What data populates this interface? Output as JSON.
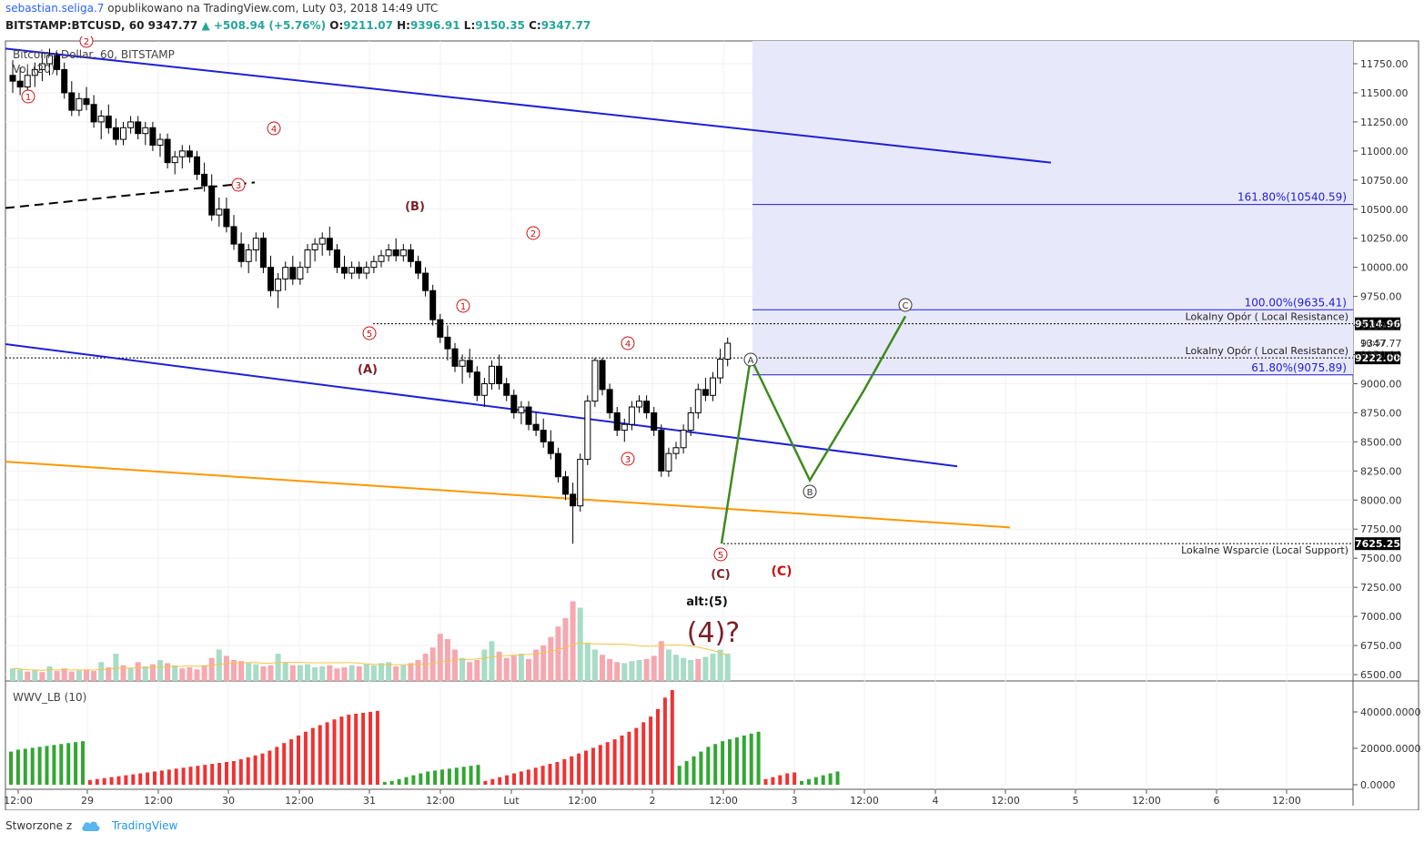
{
  "header": {
    "user": "sebastian.seliga.7",
    "published": "opublikowano na TradingView.com, Luty 03, 2018 14:49 UTC"
  },
  "symbol_bar": {
    "symbol": "BITSTAMP:BTCUSD, 60",
    "last": "9347.77",
    "change": "▲ +508.94 (+5.76%)",
    "o_label": "O:",
    "o": "9211.07",
    "h_label": "H:",
    "h": "9396.91",
    "l_label": "L:",
    "l": "9150.35",
    "c_label": "C:",
    "c": "9347.77"
  },
  "chart_legend": {
    "title": "Bitcoin / Dollar, 60, BITSTAMP",
    "volume_label": "Vol (20)",
    "indicator_label": "WWV_LB (10)"
  },
  "footer": {
    "created_with": "Stworzone z",
    "brand": "TradingView"
  },
  "colors": {
    "channel": "#1f1fd6",
    "orange": "#ff9800",
    "wave_path": "#3d8a1c",
    "bull": "#ffffff",
    "bear": "#000000",
    "projection_box": "#e8e8fb",
    "red_label": "#cc1111",
    "vol_up": "#a8dcc6",
    "vol_down": "#f5a8b0",
    "hist_up": "#33a633",
    "hist_down": "#ee3333"
  },
  "chart_data": {
    "type": "candlestick",
    "ylim": [
      6400,
      11950
    ],
    "y_ticks": [
      "6500.00",
      "6750.00",
      "7000.00",
      "7250.00",
      "7500.00",
      "7750.00",
      "8000.00",
      "8250.00",
      "8500.00",
      "8750.00",
      "9000.00",
      "9250.00",
      "9500.00",
      "9750.00",
      "10000.00",
      "10250.00",
      "10500.00",
      "10750.00",
      "11000.00",
      "11250.00",
      "11500.00",
      "11750.00"
    ],
    "x_ticks": [
      "12:00",
      "29",
      "12:00",
      "30",
      "12:00",
      "31",
      "12:00",
      "Lut",
      "12:00",
      "2",
      "12:00",
      "3",
      "12:00",
      "4",
      "12:00",
      "5",
      "12:00",
      "6",
      "12:00"
    ],
    "price_levels": [
      {
        "label": "Lokalny Opór ( Local Resistance)",
        "badge": "9514.96",
        "value": 9514.96
      },
      {
        "label": "Lokalny Opór ( Local Resistance)",
        "badge": "9222.00",
        "value": 9222.0
      },
      {
        "label": "Lokalne Wsparcie (Local Support)",
        "badge": "7625.25",
        "value": 7625.25
      }
    ],
    "fib_levels": [
      {
        "label": "161.80%(10540.59)",
        "value": 10540.59
      },
      {
        "label": "100.00%(9635.41)",
        "value": 9635.41
      },
      {
        "label": "61.80%(9075.89)",
        "value": 9075.89
      }
    ],
    "last_price_label": "9347.77",
    "countdown_label": "10:57",
    "wave_labels": {
      "a_caps": "(A)",
      "b_caps": "(B)",
      "c_caps": "(C)",
      "c_caps_2": "(C)",
      "alt": "alt:(5)",
      "big4": "(4)?",
      "A": "A",
      "B": "B",
      "C": "C",
      "n1": "1",
      "n2": "2",
      "n3": "3",
      "n4": "4",
      "n5": "5"
    },
    "candles": [
      [
        11650,
        11780,
        11500,
        11600
      ],
      [
        11600,
        11720,
        11480,
        11550
      ],
      [
        11550,
        11700,
        11450,
        11650
      ],
      [
        11650,
        11760,
        11550,
        11700
      ],
      [
        11700,
        11850,
        11600,
        11750
      ],
      [
        11750,
        11880,
        11650,
        11820
      ],
      [
        11820,
        11850,
        11650,
        11700
      ],
      [
        11700,
        11760,
        11450,
        11500
      ],
      [
        11500,
        11600,
        11300,
        11350
      ],
      [
        11350,
        11500,
        11300,
        11450
      ],
      [
        11450,
        11550,
        11350,
        11400
      ],
      [
        11400,
        11480,
        11200,
        11250
      ],
      [
        11250,
        11350,
        11100,
        11300
      ],
      [
        11300,
        11400,
        11150,
        11200
      ],
      [
        11200,
        11280,
        11050,
        11100
      ],
      [
        11100,
        11250,
        11050,
        11200
      ],
      [
        11200,
        11300,
        11150,
        11250
      ],
      [
        11250,
        11300,
        11100,
        11150
      ],
      [
        11150,
        11250,
        11050,
        11200
      ],
      [
        11200,
        11250,
        11000,
        11050
      ],
      [
        11050,
        11150,
        10950,
        11100
      ],
      [
        11100,
        11150,
        10850,
        10900
      ],
      [
        10900,
        11000,
        10800,
        10950
      ],
      [
        10950,
        11050,
        10850,
        11000
      ],
      [
        11000,
        11050,
        10900,
        10950
      ],
      [
        10950,
        11000,
        10750,
        10800
      ],
      [
        10800,
        10900,
        10650,
        10700
      ],
      [
        10700,
        10800,
        10400,
        10450
      ],
      [
        10450,
        10600,
        10350,
        10500
      ],
      [
        10500,
        10600,
        10300,
        10350
      ],
      [
        10350,
        10450,
        10150,
        10200
      ],
      [
        10200,
        10300,
        10000,
        10050
      ],
      [
        10050,
        10200,
        9950,
        10150
      ],
      [
        10150,
        10300,
        10050,
        10250
      ],
      [
        10250,
        10300,
        9950,
        10000
      ],
      [
        10000,
        10100,
        9750,
        9800
      ],
      [
        9800,
        9950,
        9650,
        9900
      ],
      [
        9900,
        10050,
        9800,
        10000
      ],
      [
        10000,
        10100,
        9850,
        9900
      ],
      [
        9900,
        10050,
        9850,
        10000
      ],
      [
        10000,
        10200,
        9950,
        10150
      ],
      [
        10150,
        10250,
        10050,
        10200
      ],
      [
        10200,
        10300,
        10100,
        10250
      ],
      [
        10250,
        10350,
        10100,
        10150
      ],
      [
        10150,
        10200,
        9950,
        10000
      ],
      [
        10000,
        10100,
        9900,
        9950
      ],
      [
        9950,
        10050,
        9900,
        10000
      ],
      [
        10000,
        10050,
        9900,
        9950
      ],
      [
        9950,
        10050,
        9900,
        10000
      ],
      [
        10000,
        10100,
        9950,
        10050
      ],
      [
        10050,
        10150,
        10000,
        10100
      ],
      [
        10100,
        10200,
        10050,
        10150
      ],
      [
        10150,
        10250,
        10050,
        10100
      ],
      [
        10100,
        10200,
        10050,
        10150
      ],
      [
        10150,
        10200,
        10000,
        10050
      ],
      [
        10050,
        10100,
        9900,
        9950
      ],
      [
        9950,
        10000,
        9750,
        9800
      ],
      [
        9800,
        9850,
        9500,
        9550
      ],
      [
        9550,
        9600,
        9350,
        9400
      ],
      [
        9400,
        9500,
        9200,
        9300
      ],
      [
        9300,
        9350,
        9100,
        9150
      ],
      [
        9150,
        9250,
        9000,
        9200
      ],
      [
        9200,
        9300,
        9050,
        9100
      ],
      [
        9100,
        9150,
        8850,
        8900
      ],
      [
        8900,
        9050,
        8800,
        9000
      ],
      [
        9000,
        9200,
        8950,
        9150
      ],
      [
        9150,
        9250,
        8950,
        9000
      ],
      [
        9000,
        9050,
        8850,
        8900
      ],
      [
        8900,
        8950,
        8700,
        8750
      ],
      [
        8750,
        8850,
        8650,
        8800
      ],
      [
        8800,
        8850,
        8600,
        8650
      ],
      [
        8650,
        8750,
        8550,
        8600
      ],
      [
        8600,
        8700,
        8450,
        8500
      ],
      [
        8500,
        8600,
        8350,
        8400
      ],
      [
        8400,
        8450,
        8150,
        8200
      ],
      [
        8200,
        8250,
        8000,
        8050
      ],
      [
        8050,
        8150,
        7625,
        7950
      ],
      [
        7950,
        8400,
        7900,
        8350
      ],
      [
        8350,
        8900,
        8300,
        8850
      ],
      [
        8850,
        9222,
        8800,
        9200
      ],
      [
        9200,
        9222,
        8900,
        8950
      ],
      [
        8950,
        9000,
        8700,
        8750
      ],
      [
        8750,
        8800,
        8550,
        8600
      ],
      [
        8600,
        8700,
        8500,
        8650
      ],
      [
        8650,
        8850,
        8600,
        8800
      ],
      [
        8800,
        8900,
        8750,
        8850
      ],
      [
        8850,
        8900,
        8700,
        8750
      ],
      [
        8750,
        8800,
        8550,
        8600
      ],
      [
        8600,
        8650,
        8200,
        8250
      ],
      [
        8250,
        8450,
        8200,
        8400
      ],
      [
        8400,
        8500,
        8350,
        8450
      ],
      [
        8450,
        8650,
        8400,
        8600
      ],
      [
        8600,
        8800,
        8550,
        8750
      ],
      [
        8750,
        9000,
        8700,
        8950
      ],
      [
        8950,
        9050,
        8850,
        8900
      ],
      [
        8900,
        9100,
        8850,
        9050
      ],
      [
        9050,
        9300,
        9000,
        9211
      ],
      [
        9211,
        9397,
        9150,
        9348
      ]
    ],
    "volume": [
      [
        0,
        1
      ],
      [
        1,
        1
      ],
      [
        2,
        0
      ],
      [
        3,
        1
      ],
      [
        4,
        0
      ],
      [
        5,
        1
      ],
      [
        6,
        0
      ],
      [
        7,
        0
      ],
      [
        8,
        0
      ],
      [
        9,
        1
      ],
      [
        10,
        0
      ],
      [
        11,
        0
      ],
      [
        12,
        1
      ],
      [
        13,
        0
      ],
      [
        14,
        1
      ],
      [
        15,
        0
      ],
      [
        16,
        1
      ],
      [
        17,
        0
      ],
      [
        18,
        1
      ],
      [
        19,
        0
      ],
      [
        20,
        1
      ],
      [
        21,
        0
      ],
      [
        22,
        1
      ],
      [
        23,
        0
      ],
      [
        24,
        0
      ],
      [
        25,
        0
      ],
      [
        26,
        0
      ],
      [
        27,
        0
      ],
      [
        28,
        1
      ],
      [
        29,
        0
      ],
      [
        30,
        0
      ],
      [
        31,
        0
      ],
      [
        32,
        1
      ],
      [
        33,
        1
      ],
      [
        34,
        0
      ],
      [
        35,
        0
      ],
      [
        36,
        1
      ],
      [
        37,
        1
      ],
      [
        38,
        0
      ],
      [
        39,
        1
      ],
      [
        40,
        1
      ],
      [
        41,
        1
      ],
      [
        42,
        1
      ],
      [
        43,
        0
      ],
      [
        44,
        0
      ],
      [
        45,
        0
      ],
      [
        46,
        1
      ],
      [
        47,
        0
      ],
      [
        48,
        1
      ],
      [
        49,
        1
      ],
      [
        50,
        1
      ],
      [
        51,
        1
      ],
      [
        52,
        0
      ],
      [
        53,
        1
      ],
      [
        54,
        0
      ],
      [
        55,
        0
      ],
      [
        56,
        0
      ],
      [
        57,
        0
      ],
      [
        58,
        0
      ],
      [
        59,
        0
      ],
      [
        60,
        0
      ],
      [
        61,
        1
      ],
      [
        62,
        0
      ],
      [
        63,
        0
      ],
      [
        64,
        1
      ],
      [
        65,
        1
      ],
      [
        66,
        0
      ],
      [
        67,
        0
      ],
      [
        68,
        0
      ],
      [
        69,
        1
      ],
      [
        70,
        0
      ],
      [
        71,
        0
      ],
      [
        72,
        0
      ],
      [
        73,
        0
      ],
      [
        74,
        0
      ],
      [
        75,
        0
      ],
      [
        76,
        0
      ],
      [
        77,
        1
      ],
      [
        78,
        1
      ],
      [
        79,
        1
      ],
      [
        80,
        0
      ],
      [
        81,
        0
      ],
      [
        82,
        0
      ],
      [
        83,
        1
      ],
      [
        84,
        1
      ],
      [
        85,
        1
      ],
      [
        86,
        0
      ],
      [
        87,
        0
      ],
      [
        88,
        0
      ],
      [
        89,
        1
      ],
      [
        90,
        1
      ],
      [
        91,
        1
      ],
      [
        92,
        1
      ],
      [
        93,
        0
      ],
      [
        94,
        1
      ],
      [
        95,
        1
      ],
      [
        96,
        1
      ],
      [
        97,
        1
      ]
    ],
    "volume_values": [
      120,
      110,
      90,
      100,
      85,
      140,
      95,
      120,
      90,
      100,
      110,
      95,
      180,
      130,
      260,
      150,
      120,
      180,
      140,
      160,
      200,
      170,
      150,
      120,
      130,
      110,
      150,
      220,
      300,
      240,
      200,
      190,
      170,
      160,
      140,
      150,
      260,
      180,
      150,
      150,
      160,
      130,
      140,
      150,
      120,
      130,
      150,
      140,
      160,
      150,
      170,
      180,
      140,
      150,
      170,
      200,
      260,
      320,
      450,
      400,
      300,
      220,
      180,
      200,
      300,
      380,
      280,
      220,
      240,
      260,
      210,
      300,
      340,
      420,
      520,
      600,
      760,
      700,
      360,
      300,
      250,
      210,
      180,
      170,
      190,
      200,
      210,
      240,
      380,
      300,
      250,
      220,
      200,
      210,
      230,
      260,
      300,
      260
    ],
    "wwv_hist": [
      [
        0.35,
        1
      ],
      [
        0.37,
        1
      ],
      [
        0.38,
        1
      ],
      [
        0.39,
        1
      ],
      [
        0.4,
        1
      ],
      [
        0.41,
        1
      ],
      [
        0.42,
        1
      ],
      [
        0.43,
        1
      ],
      [
        0.44,
        1
      ],
      [
        0.45,
        1
      ],
      [
        0.46,
        1
      ],
      [
        0.05,
        0
      ],
      [
        0.06,
        0
      ],
      [
        0.07,
        0
      ],
      [
        0.08,
        0
      ],
      [
        0.09,
        0
      ],
      [
        0.1,
        0
      ],
      [
        0.11,
        0
      ],
      [
        0.12,
        0
      ],
      [
        0.13,
        0
      ],
      [
        0.14,
        0
      ],
      [
        0.15,
        0
      ],
      [
        0.16,
        0
      ],
      [
        0.17,
        0
      ],
      [
        0.18,
        0
      ],
      [
        0.19,
        0
      ],
      [
        0.2,
        0
      ],
      [
        0.21,
        0
      ],
      [
        0.22,
        0
      ],
      [
        0.23,
        0
      ],
      [
        0.24,
        0
      ],
      [
        0.25,
        0
      ],
      [
        0.27,
        0
      ],
      [
        0.29,
        0
      ],
      [
        0.31,
        0
      ],
      [
        0.33,
        0
      ],
      [
        0.36,
        0
      ],
      [
        0.4,
        0
      ],
      [
        0.44,
        0
      ],
      [
        0.48,
        0
      ],
      [
        0.52,
        0
      ],
      [
        0.56,
        0
      ],
      [
        0.6,
        0
      ],
      [
        0.63,
        0
      ],
      [
        0.66,
        0
      ],
      [
        0.69,
        0
      ],
      [
        0.72,
        0
      ],
      [
        0.74,
        0
      ],
      [
        0.75,
        0
      ],
      [
        0.76,
        0
      ],
      [
        0.77,
        0
      ],
      [
        0.78,
        0
      ],
      [
        0.03,
        1
      ],
      [
        0.04,
        1
      ],
      [
        0.06,
        1
      ],
      [
        0.08,
        1
      ],
      [
        0.1,
        1
      ],
      [
        0.12,
        1
      ],
      [
        0.14,
        1
      ],
      [
        0.15,
        1
      ],
      [
        0.16,
        1
      ],
      [
        0.17,
        1
      ],
      [
        0.18,
        1
      ],
      [
        0.19,
        1
      ],
      [
        0.2,
        1
      ],
      [
        0.21,
        1
      ],
      [
        0.04,
        0
      ],
      [
        0.06,
        0
      ],
      [
        0.08,
        0
      ],
      [
        0.1,
        0
      ],
      [
        0.12,
        0
      ],
      [
        0.14,
        0
      ],
      [
        0.16,
        0
      ],
      [
        0.18,
        0
      ],
      [
        0.2,
        0
      ],
      [
        0.22,
        0
      ],
      [
        0.24,
        0
      ],
      [
        0.27,
        0
      ],
      [
        0.3,
        0
      ],
      [
        0.33,
        0
      ],
      [
        0.36,
        0
      ],
      [
        0.39,
        0
      ],
      [
        0.42,
        0
      ],
      [
        0.45,
        0
      ],
      [
        0.48,
        0
      ],
      [
        0.52,
        0
      ],
      [
        0.56,
        0
      ],
      [
        0.6,
        0
      ],
      [
        0.66,
        0
      ],
      [
        0.72,
        0
      ],
      [
        0.8,
        0
      ],
      [
        0.92,
        0
      ],
      [
        1.0,
        0
      ],
      [
        0.2,
        1
      ],
      [
        0.25,
        1
      ],
      [
        0.3,
        1
      ],
      [
        0.35,
        1
      ],
      [
        0.4,
        1
      ],
      [
        0.43,
        1
      ],
      [
        0.46,
        1
      ],
      [
        0.48,
        1
      ],
      [
        0.5,
        1
      ],
      [
        0.52,
        1
      ],
      [
        0.54,
        1
      ],
      [
        0.56,
        1
      ],
      [
        0.06,
        0
      ],
      [
        0.08,
        0
      ],
      [
        0.1,
        0
      ],
      [
        0.12,
        0
      ],
      [
        0.13,
        0
      ],
      [
        0.04,
        1
      ],
      [
        0.06,
        1
      ],
      [
        0.08,
        1
      ],
      [
        0.1,
        1
      ],
      [
        0.12,
        1
      ],
      [
        0.14,
        1
      ]
    ],
    "wwv_ticks": [
      "40000.0000",
      "20000.0000",
      "0.0000"
    ],
    "wwv_max_value": 53000
  }
}
